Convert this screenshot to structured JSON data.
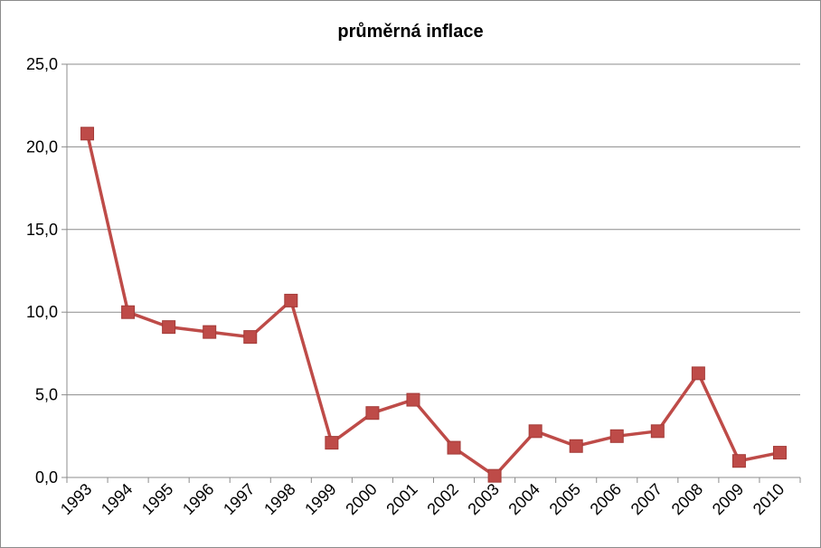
{
  "chart_data": {
    "type": "line",
    "title": "průměrná inflace",
    "xlabel": "",
    "ylabel": "",
    "categories": [
      "1993",
      "1994",
      "1995",
      "1996",
      "1997",
      "1998",
      "1999",
      "2000",
      "2001",
      "2002",
      "2003",
      "2004",
      "2005",
      "2006",
      "2007",
      "2008",
      "2009",
      "2010"
    ],
    "series": [
      {
        "values": [
          20.8,
          10.0,
          9.1,
          8.8,
          8.5,
          10.7,
          2.1,
          3.9,
          4.7,
          1.8,
          0.1,
          2.8,
          1.9,
          2.5,
          2.8,
          6.3,
          1.0,
          1.5
        ],
        "color": "#be4b48"
      }
    ],
    "ylim": [
      0,
      25
    ],
    "yticks": [
      "0,0",
      "5,0",
      "10,0",
      "15,0",
      "20,0",
      "25,0"
    ],
    "grid": true,
    "legend": "none"
  }
}
